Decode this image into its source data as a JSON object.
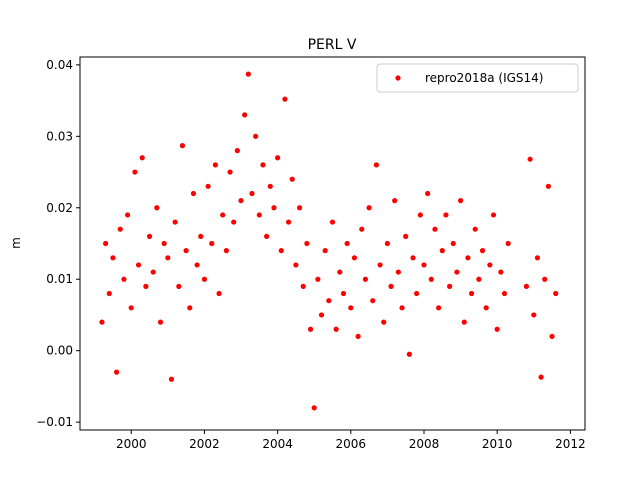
{
  "chart_data": {
    "type": "scatter",
    "title": "PERL V",
    "ylabel": "m",
    "series": [
      {
        "name": "repro2018a (IGS14)",
        "color": "#ff0000",
        "x": [
          1999.2,
          1999.3,
          1999.4,
          1999.5,
          1999.6,
          1999.7,
          1999.8,
          1999.9,
          2000.0,
          2000.1,
          2000.2,
          2000.3,
          2000.4,
          2000.5,
          2000.6,
          2000.7,
          2000.8,
          2000.9,
          2001.0,
          2001.1,
          2001.2,
          2001.3,
          2001.4,
          2001.5,
          2001.6,
          2001.7,
          2001.8,
          2001.9,
          2002.0,
          2002.1,
          2002.2,
          2002.3,
          2002.4,
          2002.5,
          2002.6,
          2002.7,
          2002.8,
          2002.9,
          2003.0,
          2003.1,
          2003.2,
          2003.3,
          2003.4,
          2003.5,
          2003.6,
          2003.7,
          2003.8,
          2003.9,
          2004.0,
          2004.1,
          2004.2,
          2004.3,
          2004.4,
          2004.5,
          2004.6,
          2004.7,
          2004.8,
          2004.9,
          2005.0,
          2005.1,
          2005.2,
          2005.3,
          2005.4,
          2005.5,
          2005.6,
          2005.7,
          2005.8,
          2005.9,
          2006.0,
          2006.1,
          2006.2,
          2006.3,
          2006.4,
          2006.5,
          2006.6,
          2006.7,
          2006.8,
          2006.9,
          2007.0,
          2007.1,
          2007.2,
          2007.3,
          2007.4,
          2007.5,
          2007.6,
          2007.7,
          2007.8,
          2007.9,
          2008.0,
          2008.1,
          2008.2,
          2008.3,
          2008.4,
          2008.5,
          2008.6,
          2008.7,
          2008.8,
          2008.9,
          2009.0,
          2009.1,
          2009.2,
          2009.3,
          2009.4,
          2009.5,
          2009.6,
          2009.7,
          2009.8,
          2009.9,
          2010.0,
          2010.1,
          2010.2,
          2010.3,
          2010.8,
          2010.9,
          2011.0,
          2011.1,
          2011.2,
          2011.3,
          2011.4,
          2011.5,
          2011.6
        ],
        "values": [
          0.004,
          0.015,
          0.008,
          0.013,
          -0.003,
          0.017,
          0.01,
          0.019,
          0.006,
          0.025,
          0.012,
          0.027,
          0.009,
          0.016,
          0.011,
          0.02,
          0.004,
          0.015,
          0.013,
          -0.004,
          0.018,
          0.009,
          0.0287,
          0.014,
          0.006,
          0.022,
          0.012,
          0.016,
          0.01,
          0.023,
          0.015,
          0.026,
          0.008,
          0.019,
          0.014,
          0.025,
          0.018,
          0.028,
          0.021,
          0.033,
          0.0387,
          0.022,
          0.03,
          0.019,
          0.026,
          0.016,
          0.023,
          0.02,
          0.027,
          0.014,
          0.0352,
          0.018,
          0.024,
          0.012,
          0.02,
          0.009,
          0.015,
          0.003,
          -0.008,
          0.01,
          0.005,
          0.014,
          0.007,
          0.018,
          0.003,
          0.011,
          0.008,
          0.015,
          0.006,
          0.013,
          0.002,
          0.017,
          0.01,
          0.02,
          0.007,
          0.026,
          0.012,
          0.004,
          0.015,
          0.009,
          0.021,
          0.011,
          0.006,
          0.016,
          -0.0005,
          0.013,
          0.008,
          0.019,
          0.012,
          0.022,
          0.01,
          0.017,
          0.006,
          0.014,
          0.019,
          0.009,
          0.015,
          0.011,
          0.021,
          0.004,
          0.013,
          0.008,
          0.017,
          0.01,
          0.014,
          0.006,
          0.012,
          0.019,
          0.003,
          0.011,
          0.008,
          0.015,
          0.009,
          0.0268,
          0.005,
          0.013,
          -0.0037,
          0.01,
          0.023,
          0.002,
          0.008
        ]
      }
    ],
    "xlim": [
      1998.6,
      2012.4
    ],
    "xticks": [
      2000,
      2002,
      2004,
      2006,
      2008,
      2010,
      2012
    ],
    "ylim": [
      -0.0111,
      0.0411
    ],
    "yticks": [
      {
        "value": -0.01,
        "label": "−0.01"
      },
      {
        "value": 0,
        "label": "0.00"
      },
      0.01,
      0.02,
      0.03,
      0.04
    ],
    "legend": "upper right"
  }
}
